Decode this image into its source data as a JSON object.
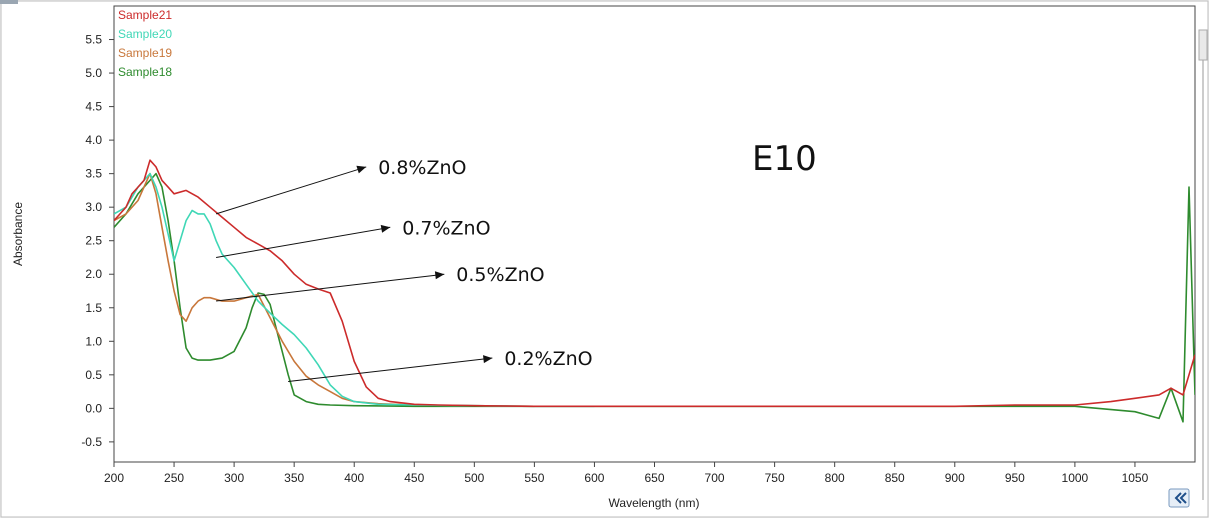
{
  "chart_data": {
    "type": "line",
    "title": "E10",
    "xlabel": "Wavelength (nm)",
    "ylabel": "Absorbance",
    "xlim": [
      200,
      1100
    ],
    "ylim": [
      -0.8,
      6.0
    ],
    "x_ticks": [
      200,
      250,
      300,
      350,
      400,
      450,
      500,
      550,
      600,
      650,
      700,
      750,
      800,
      850,
      900,
      950,
      1000,
      1050
    ],
    "y_ticks": [
      -0.5,
      0.0,
      0.5,
      1.0,
      1.5,
      2.0,
      2.5,
      3.0,
      3.5,
      4.0,
      4.5,
      5.0,
      5.5
    ],
    "y_tick_labels": [
      "-0.5",
      "0.0",
      "0.5",
      "1.0",
      "1.5",
      "2.0",
      "2.5",
      "3.0",
      "3.5",
      "4.0",
      "4.5",
      "5.0",
      "5.5"
    ],
    "grid": false,
    "legend_position": "top-left",
    "series": [
      {
        "name": "Sample21",
        "color": "#cc2b2b",
        "x": [
          200,
          205,
          210,
          215,
          220,
          225,
          230,
          235,
          240,
          245,
          250,
          260,
          270,
          280,
          290,
          300,
          310,
          320,
          330,
          340,
          350,
          360,
          370,
          380,
          390,
          400,
          410,
          420,
          430,
          450,
          470,
          500,
          550,
          600,
          700,
          800,
          900,
          950,
          1000,
          1030,
          1050,
          1070,
          1080,
          1090,
          1095,
          1100
        ],
        "y": [
          2.8,
          2.9,
          3.0,
          3.2,
          3.3,
          3.4,
          3.7,
          3.6,
          3.4,
          3.3,
          3.2,
          3.25,
          3.15,
          3.0,
          2.85,
          2.7,
          2.55,
          2.45,
          2.35,
          2.2,
          2.0,
          1.85,
          1.78,
          1.72,
          1.3,
          0.7,
          0.32,
          0.15,
          0.1,
          0.06,
          0.05,
          0.04,
          0.03,
          0.03,
          0.03,
          0.03,
          0.03,
          0.05,
          0.05,
          0.1,
          0.15,
          0.2,
          0.3,
          0.2,
          0.5,
          0.8
        ]
      },
      {
        "name": "Sample20",
        "color": "#3fd7b6",
        "x": [
          200,
          210,
          220,
          230,
          235,
          240,
          245,
          250,
          255,
          260,
          265,
          270,
          275,
          280,
          285,
          290,
          300,
          310,
          320,
          330,
          340,
          350,
          360,
          370,
          380,
          390,
          400,
          420,
          450,
          500,
          550,
          600
        ],
        "y": [
          2.9,
          3.0,
          3.3,
          3.5,
          3.3,
          3.0,
          2.6,
          2.2,
          2.5,
          2.8,
          2.95,
          2.9,
          2.9,
          2.75,
          2.5,
          2.3,
          2.1,
          1.85,
          1.6,
          1.42,
          1.25,
          1.1,
          0.9,
          0.65,
          0.35,
          0.18,
          0.1,
          0.06,
          0.05,
          0.04,
          0.03,
          0.03
        ]
      },
      {
        "name": "Sample19",
        "color": "#c8773b",
        "x": [
          200,
          210,
          220,
          230,
          235,
          240,
          245,
          250,
          255,
          260,
          265,
          270,
          275,
          280,
          290,
          300,
          310,
          320,
          330,
          340,
          350,
          360,
          370,
          380,
          390,
          400,
          420,
          450,
          500,
          550
        ],
        "y": [
          2.8,
          2.9,
          3.1,
          3.5,
          3.2,
          2.7,
          2.2,
          1.75,
          1.4,
          1.3,
          1.5,
          1.6,
          1.65,
          1.65,
          1.6,
          1.6,
          1.65,
          1.7,
          1.35,
          1.0,
          0.7,
          0.48,
          0.35,
          0.25,
          0.15,
          0.1,
          0.07,
          0.05,
          0.04,
          0.03
        ]
      },
      {
        "name": "Sample18",
        "color": "#2e8b2e",
        "x": [
          200,
          210,
          220,
          230,
          235,
          240,
          245,
          250,
          255,
          260,
          265,
          270,
          280,
          290,
          300,
          310,
          315,
          320,
          325,
          330,
          335,
          340,
          345,
          350,
          360,
          370,
          380,
          400,
          450,
          500,
          550,
          600,
          700,
          800,
          900,
          1000,
          1050,
          1070,
          1080,
          1090,
          1095,
          1100
        ],
        "y": [
          2.7,
          2.9,
          3.2,
          3.4,
          3.5,
          3.3,
          2.8,
          2.2,
          1.5,
          0.9,
          0.75,
          0.72,
          0.72,
          0.75,
          0.85,
          1.2,
          1.5,
          1.72,
          1.7,
          1.55,
          1.2,
          0.85,
          0.5,
          0.2,
          0.1,
          0.06,
          0.05,
          0.04,
          0.03,
          0.03,
          0.03,
          0.03,
          0.03,
          0.03,
          0.03,
          0.03,
          -0.05,
          -0.15,
          0.3,
          -0.2,
          3.3,
          0.2
        ]
      }
    ],
    "annotations": [
      {
        "text": "0.8%ZnO",
        "from": [
          285,
          2.9
        ],
        "to": [
          410,
          3.6
        ]
      },
      {
        "text": "0.7%ZnO",
        "from": [
          285,
          2.25
        ],
        "to": [
          430,
          2.7
        ]
      },
      {
        "text": "0.5%ZnO",
        "from": [
          285,
          1.6
        ],
        "to": [
          475,
          2.0
        ]
      },
      {
        "text": "0.2%ZnO",
        "from": [
          345,
          0.4
        ],
        "to": [
          515,
          0.75
        ]
      }
    ]
  },
  "toolbar": {
    "expand_icon": "double-chevron-left-icon"
  }
}
